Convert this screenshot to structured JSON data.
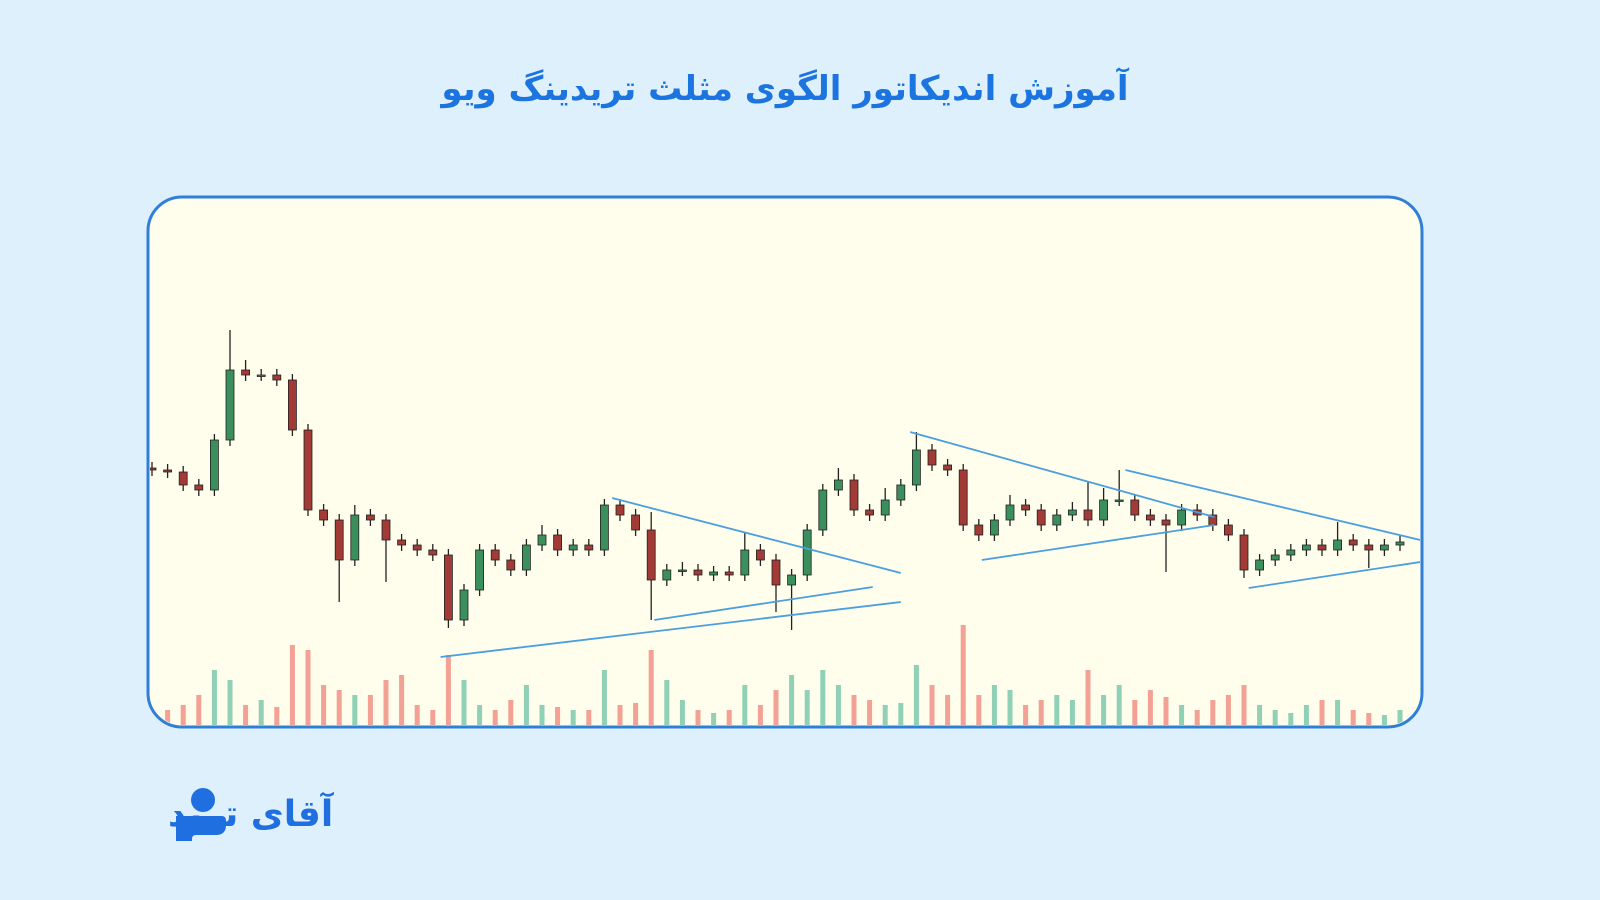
{
  "title": "آموزش اندیکاتور الگوی مثلث تریدینگ ویو",
  "logo": {
    "text": "آقای ترید"
  },
  "chart_data": {
    "type": "candlestick",
    "open": [
      232,
      230,
      228,
      215,
      210,
      260,
      330,
      325,
      325,
      320,
      270,
      190,
      180,
      140,
      185,
      180,
      160,
      155,
      150,
      145,
      80,
      110,
      150,
      140,
      130,
      155,
      165,
      150,
      155,
      150,
      195,
      185,
      170,
      120,
      130,
      130,
      125,
      128,
      125,
      150,
      140,
      115,
      125,
      170,
      210,
      220,
      190,
      185,
      200,
      215,
      250,
      235,
      230,
      175,
      165,
      180,
      195,
      190,
      175,
      185,
      190,
      180,
      200,
      200,
      185,
      180,
      175,
      190,
      185,
      175,
      165,
      130,
      140,
      145,
      150,
      155,
      150,
      160,
      155,
      150,
      155
    ],
    "high": [
      238,
      236,
      234,
      221,
      266,
      370,
      340,
      331,
      331,
      326,
      276,
      196,
      186,
      195,
      191,
      186,
      166,
      161,
      156,
      151,
      116,
      156,
      156,
      146,
      161,
      175,
      171,
      161,
      161,
      201,
      201,
      191,
      188,
      136,
      138,
      136,
      134,
      134,
      168,
      156,
      146,
      131,
      176,
      216,
      232,
      226,
      196,
      212,
      221,
      268,
      256,
      241,
      236,
      181,
      186,
      205,
      201,
      196,
      191,
      198,
      218,
      212,
      230,
      206,
      191,
      186,
      196,
      196,
      191,
      181,
      171,
      146,
      151,
      156,
      161,
      161,
      178,
      166,
      161,
      161,
      164
    ],
    "low": [
      224,
      222,
      209,
      204,
      204,
      254,
      319,
      319,
      314,
      264,
      184,
      174,
      98,
      134,
      174,
      118,
      149,
      144,
      139,
      72,
      74,
      104,
      134,
      124,
      124,
      149,
      144,
      144,
      144,
      144,
      179,
      164,
      80,
      114,
      124,
      119,
      119,
      119,
      119,
      134,
      88,
      70,
      119,
      164,
      204,
      184,
      179,
      179,
      194,
      209,
      229,
      224,
      169,
      159,
      159,
      174,
      184,
      169,
      169,
      179,
      174,
      174,
      194,
      179,
      174,
      128,
      169,
      179,
      169,
      159,
      122,
      124,
      134,
      139,
      144,
      144,
      144,
      149,
      132,
      144,
      149
    ],
    "close": [
      230,
      228,
      215,
      210,
      260,
      330,
      325,
      325,
      320,
      270,
      190,
      180,
      140,
      185,
      180,
      160,
      155,
      150,
      145,
      80,
      110,
      150,
      140,
      130,
      155,
      165,
      150,
      155,
      150,
      195,
      185,
      170,
      120,
      130,
      130,
      125,
      128,
      125,
      150,
      140,
      115,
      125,
      170,
      210,
      220,
      190,
      185,
      200,
      215,
      250,
      235,
      230,
      175,
      165,
      180,
      195,
      190,
      175,
      185,
      190,
      180,
      200,
      200,
      185,
      180,
      175,
      190,
      185,
      175,
      165,
      130,
      140,
      145,
      150,
      155,
      150,
      160,
      155,
      150,
      155,
      158
    ],
    "volume": [
      12,
      15,
      20,
      30,
      55,
      45,
      20,
      25,
      18,
      80,
      75,
      40,
      35,
      30,
      30,
      45,
      50,
      20,
      15,
      70,
      45,
      20,
      15,
      25,
      40,
      20,
      18,
      15,
      15,
      55,
      20,
      22,
      75,
      45,
      25,
      15,
      12,
      15,
      40,
      20,
      35,
      50,
      35,
      55,
      40,
      30,
      25,
      20,
      22,
      60,
      40,
      30,
      100,
      30,
      40,
      35,
      20,
      25,
      30,
      25,
      55,
      30,
      40,
      25,
      35,
      28,
      20,
      15,
      25,
      30,
      40,
      20,
      15,
      12,
      20,
      25,
      25,
      15,
      12,
      10,
      15
    ],
    "xlim": [
      0,
      80
    ],
    "ylim": [
      40,
      400
    ],
    "vlim": [
      0,
      110
    ],
    "up_color": "#3b8f5c",
    "down_color": "#a23b36",
    "volume_up_color": "#8fd0b6",
    "volume_down_color": "#f2a194",
    "trendline_color": "#4a9fe0",
    "trendlines": [
      [
        [
          18.5,
          43
        ],
        [
          48,
          98
        ]
      ],
      [
        [
          29.5,
          202
        ],
        [
          48,
          127
        ]
      ],
      [
        [
          32.2,
          80
        ],
        [
          46.2,
          113
        ]
      ],
      [
        [
          48.6,
          268
        ],
        [
          68.1,
          183
        ]
      ],
      [
        [
          53.2,
          140
        ],
        [
          68.1,
          175
        ]
      ],
      [
        [
          62.4,
          230
        ],
        [
          81.3,
          160
        ]
      ],
      [
        [
          70.3,
          112
        ],
        [
          81.3,
          138
        ]
      ]
    ]
  }
}
